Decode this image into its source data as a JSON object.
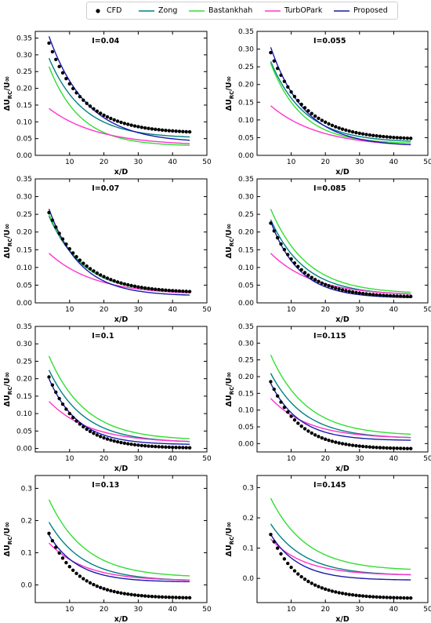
{
  "legend": {
    "items": [
      {
        "label": "CFD",
        "color": "#000000",
        "marker": "dot"
      },
      {
        "label": "Zong",
        "color": "#008080",
        "marker": "line"
      },
      {
        "label": "Bastankhah",
        "color": "#33dd33",
        "marker": "line"
      },
      {
        "label": "TurbOPark",
        "color": "#ff33cc",
        "marker": "line"
      },
      {
        "label": "Proposed",
        "color": "#1a1aaa",
        "marker": "line"
      }
    ]
  },
  "axes": {
    "xlabel": "x/D",
    "ylabel_main": "ΔU",
    "ylabel_sub": "RC",
    "ylabel_tail": "/U∞"
  },
  "chart_data": [
    {
      "type": "line",
      "title": "I=0.04",
      "xlim": [
        0,
        50
      ],
      "ylim": [
        0,
        0.37
      ],
      "xticks": [
        10,
        20,
        30,
        40,
        50
      ],
      "yticks": [
        0.0,
        0.05,
        0.1,
        0.15,
        0.2,
        0.25,
        0.3,
        0.35
      ],
      "cfd": {
        "x": [
          4,
          45
        ],
        "y_start": 0.335,
        "y_end": 0.07,
        "decay": 0.1
      },
      "series": [
        {
          "name": "Zong",
          "x": [
            4,
            45
          ],
          "y_start": 0.29,
          "y_end": 0.055,
          "decay": 0.1
        },
        {
          "name": "Bastankhah",
          "x": [
            4,
            45
          ],
          "y_start": 0.265,
          "y_end": 0.03,
          "decay": 0.11
        },
        {
          "name": "TurbOPark",
          "x": [
            4,
            45
          ],
          "y_start": 0.14,
          "y_end": 0.035,
          "decay": 0.07
        },
        {
          "name": "Proposed",
          "x": [
            4,
            45
          ],
          "y_start": 0.355,
          "y_end": 0.045,
          "decay": 0.09
        }
      ]
    },
    {
      "type": "line",
      "title": "I=0.055",
      "xlim": [
        0,
        50
      ],
      "ylim": [
        0,
        0.35
      ],
      "xticks": [
        10,
        20,
        30,
        40,
        50
      ],
      "yticks": [
        0.0,
        0.05,
        0.1,
        0.15,
        0.2,
        0.25,
        0.3,
        0.35
      ],
      "cfd": {
        "x": [
          4,
          45
        ],
        "y_start": 0.29,
        "y_end": 0.048,
        "decay": 0.1
      },
      "series": [
        {
          "name": "Zong",
          "x": [
            4,
            45
          ],
          "y_start": 0.265,
          "y_end": 0.04,
          "decay": 0.1
        },
        {
          "name": "Bastankhah",
          "x": [
            4,
            45
          ],
          "y_start": 0.26,
          "y_end": 0.035,
          "decay": 0.11
        },
        {
          "name": "TurbOPark",
          "x": [
            4,
            45
          ],
          "y_start": 0.14,
          "y_end": 0.03,
          "decay": 0.07
        },
        {
          "name": "Proposed",
          "x": [
            4,
            45
          ],
          "y_start": 0.305,
          "y_end": 0.03,
          "decay": 0.1
        }
      ]
    },
    {
      "type": "line",
      "title": "I=0.07",
      "xlim": [
        0,
        50
      ],
      "ylim": [
        0,
        0.35
      ],
      "xticks": [
        10,
        20,
        30,
        40,
        50
      ],
      "yticks": [
        0.0,
        0.05,
        0.1,
        0.15,
        0.2,
        0.25,
        0.3,
        0.35
      ],
      "cfd": {
        "x": [
          4,
          45
        ],
        "y_start": 0.255,
        "y_end": 0.032,
        "decay": 0.1
      },
      "series": [
        {
          "name": "Zong",
          "x": [
            4,
            45
          ],
          "y_start": 0.245,
          "y_end": 0.03,
          "decay": 0.1
        },
        {
          "name": "Bastankhah",
          "x": [
            4,
            45
          ],
          "y_start": 0.25,
          "y_end": 0.03,
          "decay": 0.1
        },
        {
          "name": "TurbOPark",
          "x": [
            4,
            45
          ],
          "y_start": 0.14,
          "y_end": 0.028,
          "decay": 0.075
        },
        {
          "name": "Proposed",
          "x": [
            4,
            45
          ],
          "y_start": 0.265,
          "y_end": 0.022,
          "decay": 0.11
        }
      ]
    },
    {
      "type": "line",
      "title": "I=0.085",
      "xlim": [
        0,
        50
      ],
      "ylim": [
        0,
        0.35
      ],
      "xticks": [
        10,
        20,
        30,
        40,
        50
      ],
      "yticks": [
        0.0,
        0.05,
        0.1,
        0.15,
        0.2,
        0.25,
        0.3,
        0.35
      ],
      "cfd": {
        "x": [
          4,
          45
        ],
        "y_start": 0.225,
        "y_end": 0.018,
        "decay": 0.11
      },
      "series": [
        {
          "name": "Zong",
          "x": [
            4,
            45
          ],
          "y_start": 0.235,
          "y_end": 0.025,
          "decay": 0.1
        },
        {
          "name": "Bastankhah",
          "x": [
            4,
            45
          ],
          "y_start": 0.265,
          "y_end": 0.03,
          "decay": 0.095
        },
        {
          "name": "TurbOPark",
          "x": [
            4,
            45
          ],
          "y_start": 0.14,
          "y_end": 0.025,
          "decay": 0.08
        },
        {
          "name": "Proposed",
          "x": [
            4,
            45
          ],
          "y_start": 0.23,
          "y_end": 0.015,
          "decay": 0.12
        }
      ]
    },
    {
      "type": "line",
      "title": "I=0.1",
      "xlim": [
        0,
        50
      ],
      "ylim": [
        -0.01,
        0.35
      ],
      "xticks": [
        10,
        20,
        30,
        40,
        50
      ],
      "yticks": [
        0.0,
        0.05,
        0.1,
        0.15,
        0.2,
        0.25,
        0.3,
        0.35
      ],
      "cfd": {
        "x": [
          4,
          45
        ],
        "y_start": 0.205,
        "y_end": 0.002,
        "decay": 0.12
      },
      "series": [
        {
          "name": "Zong",
          "x": [
            4,
            45
          ],
          "y_start": 0.225,
          "y_end": 0.02,
          "decay": 0.1
        },
        {
          "name": "Bastankhah",
          "x": [
            4,
            45
          ],
          "y_start": 0.265,
          "y_end": 0.028,
          "decay": 0.095
        },
        {
          "name": "TurbOPark",
          "x": [
            4,
            45
          ],
          "y_start": 0.135,
          "y_end": 0.02,
          "decay": 0.085
        },
        {
          "name": "Proposed",
          "x": [
            4,
            45
          ],
          "y_start": 0.2,
          "y_end": 0.012,
          "decay": 0.12
        }
      ]
    },
    {
      "type": "line",
      "title": "I=0.115",
      "xlim": [
        0,
        50
      ],
      "ylim": [
        -0.025,
        0.35
      ],
      "xticks": [
        10,
        20,
        30,
        40,
        50
      ],
      "yticks": [
        0.0,
        0.05,
        0.1,
        0.15,
        0.2,
        0.25,
        0.3,
        0.35
      ],
      "cfd": {
        "x": [
          4,
          45
        ],
        "y_start": 0.185,
        "y_end": -0.015,
        "decay": 0.12
      },
      "series": [
        {
          "name": "Zong",
          "x": [
            4,
            45
          ],
          "y_start": 0.21,
          "y_end": 0.018,
          "decay": 0.1
        },
        {
          "name": "Bastankhah",
          "x": [
            4,
            45
          ],
          "y_start": 0.265,
          "y_end": 0.028,
          "decay": 0.095
        },
        {
          "name": "TurbOPark",
          "x": [
            4,
            45
          ],
          "y_start": 0.135,
          "y_end": 0.018,
          "decay": 0.09
        },
        {
          "name": "Proposed",
          "x": [
            4,
            45
          ],
          "y_start": 0.18,
          "y_end": 0.01,
          "decay": 0.12
        }
      ]
    },
    {
      "type": "line",
      "title": "I=0.13",
      "xlim": [
        0,
        50
      ],
      "ylim": [
        -0.055,
        0.34
      ],
      "xticks": [
        10,
        20,
        30,
        40,
        50
      ],
      "yticks": [
        0.0,
        0.1,
        0.2,
        0.3
      ],
      "cfd": {
        "x": [
          4,
          45
        ],
        "y_start": 0.16,
        "y_end": -0.04,
        "decay": 0.12
      },
      "series": [
        {
          "name": "Zong",
          "x": [
            4,
            45
          ],
          "y_start": 0.195,
          "y_end": 0.015,
          "decay": 0.1
        },
        {
          "name": "Bastankhah",
          "x": [
            4,
            45
          ],
          "y_start": 0.265,
          "y_end": 0.028,
          "decay": 0.095
        },
        {
          "name": "TurbOPark",
          "x": [
            4,
            45
          ],
          "y_start": 0.13,
          "y_end": 0.015,
          "decay": 0.095
        },
        {
          "name": "Proposed",
          "x": [
            4,
            45
          ],
          "y_start": 0.155,
          "y_end": 0.01,
          "decay": 0.12
        }
      ]
    },
    {
      "type": "line",
      "title": "I=0.145",
      "xlim": [
        0,
        50
      ],
      "ylim": [
        -0.08,
        0.34
      ],
      "xticks": [
        10,
        20,
        30,
        40,
        50
      ],
      "yticks": [
        0.0,
        0.1,
        0.2,
        0.3
      ],
      "cfd": {
        "x": [
          4,
          45
        ],
        "y_start": 0.145,
        "y_end": -0.065,
        "decay": 0.12
      },
      "series": [
        {
          "name": "Zong",
          "x": [
            4,
            45
          ],
          "y_start": 0.18,
          "y_end": 0.012,
          "decay": 0.1
        },
        {
          "name": "Bastankhah",
          "x": [
            4,
            45
          ],
          "y_start": 0.265,
          "y_end": 0.03,
          "decay": 0.095
        },
        {
          "name": "TurbOPark",
          "x": [
            4,
            45
          ],
          "y_start": 0.13,
          "y_end": 0.012,
          "decay": 0.1
        },
        {
          "name": "Proposed",
          "x": [
            4,
            45
          ],
          "y_start": 0.145,
          "y_end": -0.005,
          "decay": 0.12
        }
      ]
    }
  ]
}
